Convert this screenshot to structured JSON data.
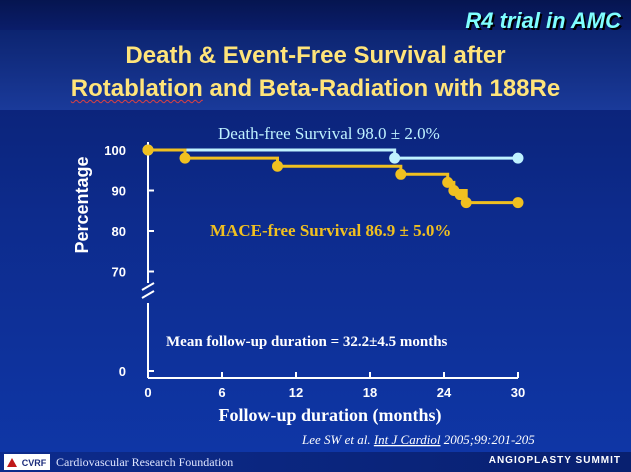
{
  "header": {
    "tag": "R4 trial in AMC",
    "title_line1": "Death & Event-Free Survival after",
    "title_line2_word1": "Rotablation",
    "title_line2_rest": " and Beta-Radiation with 188Re"
  },
  "chart_data": {
    "type": "line",
    "ylabel": "Percentage",
    "xlabel": "Follow-up duration (months)",
    "x_ticks": [
      0,
      6,
      12,
      18,
      24,
      30
    ],
    "y_ticks": [
      0,
      70,
      80,
      90,
      100
    ],
    "axis_break": true,
    "xlim": [
      0,
      30
    ],
    "series": [
      {
        "color": "#bff2ff",
        "points": [
          [
            0,
            100
          ],
          [
            20,
            100
          ],
          [
            20,
            98
          ],
          [
            30,
            98
          ]
        ],
        "markers": [
          [
            0,
            100
          ],
          [
            20,
            98
          ],
          [
            30,
            98
          ]
        ]
      },
      {
        "color": "#f0c020",
        "points": [
          [
            0,
            100
          ],
          [
            3,
            100
          ],
          [
            3,
            98
          ],
          [
            10.5,
            98
          ],
          [
            10.5,
            96
          ],
          [
            20.5,
            96
          ],
          [
            20.5,
            94
          ],
          [
            24.3,
            94
          ],
          [
            24.3,
            92
          ],
          [
            24.8,
            92
          ],
          [
            24.8,
            90
          ],
          [
            25.8,
            90
          ],
          [
            25.8,
            87
          ],
          [
            30,
            87
          ]
        ],
        "markers": [
          [
            0,
            100
          ],
          [
            3,
            98
          ],
          [
            10.5,
            96
          ],
          [
            20.5,
            94
          ],
          [
            24.3,
            92
          ],
          [
            24.8,
            90
          ],
          [
            25.3,
            89
          ],
          [
            25.8,
            87
          ],
          [
            30,
            87
          ]
        ]
      }
    ],
    "annotations": [
      "Death-free Survival  98.0 ± 2.0%",
      "MACE-free Survival  86.9 ± 5.0%",
      "Mean follow-up duration = 32.2±4.5 months"
    ],
    "citation_a": "Lee SW et al. ",
    "citation_b": "Int J Cardiol",
    "citation_c": " 2005;99:201-205"
  },
  "footer": {
    "logo_text": "CVRF",
    "left": "Cardiovascular Research Foundation",
    "right": "ANGIOPLASTY SUMMIT"
  }
}
